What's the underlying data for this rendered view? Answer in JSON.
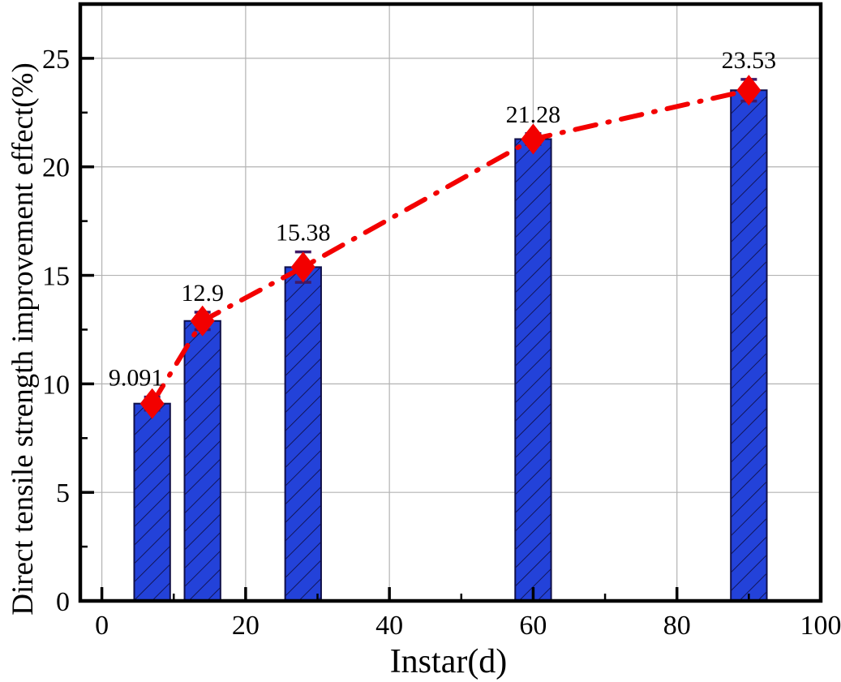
{
  "figure": {
    "background": "#ffffff"
  },
  "chart_data": {
    "type": "bar",
    "subtype": "bar-with-line-overlay",
    "title": "",
    "xlabel": "Instar(d)",
    "ylabel": "Direct tensile strength improvement effect(%)",
    "x": [
      7,
      14,
      28,
      60,
      90
    ],
    "values": [
      9.091,
      12.9,
      15.38,
      21.28,
      23.53
    ],
    "value_labels": [
      "9.091",
      "12.9",
      "15.38",
      "21.28",
      "23.53"
    ],
    "errors": [
      0.3,
      0.4,
      0.7,
      0.25,
      0.5
    ],
    "bar_width_units": 5,
    "xlim": [
      -3,
      100
    ],
    "ylim": [
      0,
      27.5
    ],
    "x_major_ticks": [
      0,
      20,
      40,
      60,
      80,
      100
    ],
    "x_minor_ticks": [
      10,
      30,
      50,
      70,
      90
    ],
    "y_major_ticks": [
      0,
      5,
      10,
      15,
      20,
      25
    ],
    "y_minor_ticks": [
      2.5,
      7.5,
      12.5,
      17.5,
      22.5
    ],
    "grid": true,
    "legend": "none",
    "line_style": "dash-dot",
    "marker": "diamond",
    "hatch": "forward-diagonal",
    "label_dx": [
      -20,
      0,
      0,
      0,
      0
    ],
    "colors": {
      "bar_fill": "#2342d9",
      "bar_edge": "#10104a",
      "hatch_line": "#10104a",
      "line": "#f30000",
      "marker": "#f30000",
      "error_bar": "#401a66",
      "grid": "#b3b3b3",
      "axis": "#000000",
      "text": "#000000"
    }
  }
}
